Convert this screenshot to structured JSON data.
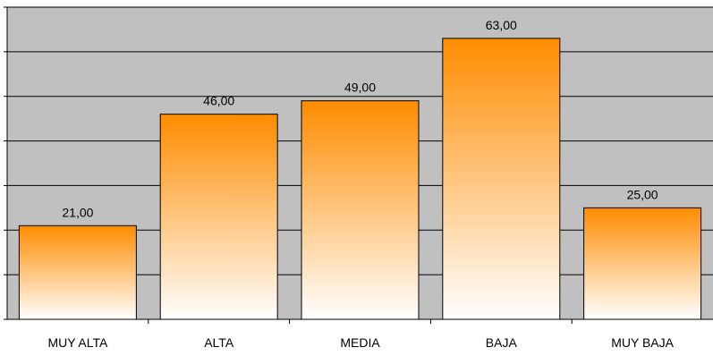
{
  "chart_data": {
    "type": "bar",
    "categories": [
      "MUY ALTA",
      "ALTA",
      "MEDIA",
      "BAJA",
      "MUY BAJA"
    ],
    "values": [
      21,
      46,
      49,
      63,
      25
    ],
    "data_labels": [
      "21,00",
      "46,00",
      "49,00",
      "63,00",
      "25,00"
    ],
    "ylim": [
      0,
      70
    ],
    "y_major_step": 10,
    "grid": true,
    "legend": "none",
    "colors": {
      "plot_background": "#c0c0c0",
      "bar_top": "#ff8c00",
      "bar_bottom": "#ffffff",
      "bar_outline": "#000000",
      "gridline": "#000000"
    }
  }
}
